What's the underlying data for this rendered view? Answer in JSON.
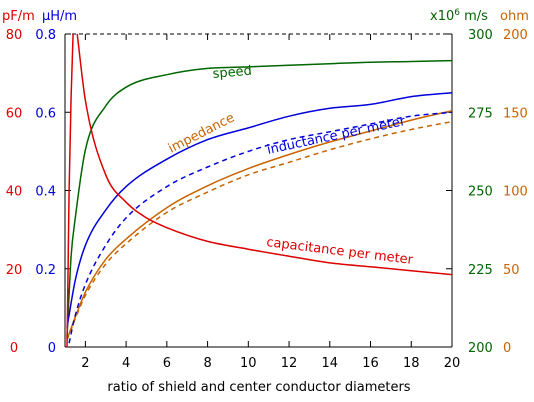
{
  "chart_data": {
    "type": "line",
    "xlabel": "ratio of shield and center conductor diameters",
    "xlim": [
      1,
      20
    ],
    "x_ticks": [
      2,
      4,
      6,
      8,
      10,
      12,
      14,
      16,
      18,
      20
    ],
    "axes": {
      "left_capacitance": {
        "unit": "pF/m",
        "color": "#dd0000",
        "range": [
          0,
          80
        ],
        "ticks": [
          0,
          20,
          40,
          60,
          80
        ]
      },
      "left_inductance": {
        "unit": "µH/m",
        "color": "#0000dd",
        "range": [
          0,
          0.8
        ],
        "ticks": [
          "0",
          "0.2",
          "0.4",
          "0.6",
          "0.8"
        ]
      },
      "right_speed": {
        "unit_prefix": "x10",
        "unit_exp": "6",
        "unit_suffix": " m/s",
        "color": "#006600",
        "range": [
          200,
          300
        ],
        "ticks": [
          200,
          225,
          250,
          275,
          300
        ]
      },
      "right_impedance": {
        "unit": "ohm",
        "color": "#c86400",
        "range": [
          0,
          200
        ],
        "ticks": [
          0,
          50,
          100,
          150,
          200
        ]
      }
    },
    "series": [
      {
        "name": "speed",
        "axis": "right_speed",
        "color": "#006600",
        "dashed": false,
        "x": [
          1.1,
          1.3,
          1.5,
          2,
          3,
          4,
          6,
          8,
          10,
          12,
          14,
          16,
          18,
          20
        ],
        "values": [
          203,
          229,
          241,
          263,
          277,
          283,
          287,
          289,
          289.5,
          290,
          290.5,
          291,
          291.2,
          291.5
        ]
      },
      {
        "name": "impedance",
        "axis": "right_impedance",
        "color": "#c86400",
        "dashed": false,
        "x": [
          1.1,
          1.5,
          2,
          3,
          4,
          6,
          8,
          10,
          12,
          14,
          16,
          18,
          20
        ],
        "values": [
          5,
          19,
          35,
          56,
          69,
          89,
          103,
          114,
          123,
          131,
          138,
          145,
          151
        ]
      },
      {
        "name": "",
        "axis": "right_impedance",
        "color": "#c86400",
        "dashed": true,
        "x": [
          1.1,
          1.5,
          2,
          3,
          4,
          6,
          8,
          10,
          12,
          14,
          16,
          18,
          20
        ],
        "values": [
          4.5,
          18,
          33,
          53,
          66,
          86,
          99,
          110,
          118,
          126,
          133,
          139,
          144
        ]
      },
      {
        "name": "inductance per meter",
        "axis": "left_inductance",
        "color": "#0000dd",
        "dashed": false,
        "x": [
          1.1,
          1.5,
          2,
          3,
          4,
          6,
          8,
          10,
          12,
          14,
          16,
          18,
          20
        ],
        "values": [
          0.05,
          0.17,
          0.26,
          0.35,
          0.41,
          0.48,
          0.53,
          0.56,
          0.59,
          0.61,
          0.62,
          0.64,
          0.65
        ]
      },
      {
        "name": "",
        "axis": "left_inductance",
        "color": "#0000dd",
        "dashed": true,
        "x": [
          1.2,
          1.5,
          2,
          3,
          4,
          6,
          8,
          10,
          12,
          14,
          16,
          18,
          20
        ],
        "values": [
          0.01,
          0.08,
          0.16,
          0.26,
          0.33,
          0.41,
          0.46,
          0.5,
          0.53,
          0.55,
          0.57,
          0.59,
          0.6
        ]
      },
      {
        "name": "capacitance per meter",
        "axis": "left_capacitance",
        "color": "#dd0000",
        "dashed": false,
        "x": [
          1.6,
          2,
          3,
          4,
          5,
          6,
          8,
          10,
          12,
          14,
          16,
          18,
          20
        ],
        "values": [
          80,
          63,
          44,
          37,
          33,
          30.5,
          27,
          25,
          23.2,
          21.5,
          20.5,
          19.5,
          18.5
        ]
      },
      {
        "name": "",
        "axis": "left_capacitance",
        "color": "#dd0000",
        "dashed": false,
        "x": [
          1.1,
          1.15,
          1.2,
          1.3,
          1.4
        ],
        "values": [
          0,
          20,
          40,
          64,
          80
        ]
      }
    ],
    "grid": false,
    "legend": "inline labels"
  }
}
